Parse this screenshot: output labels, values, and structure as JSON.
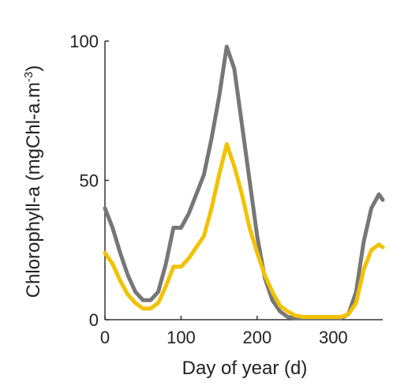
{
  "chart_data": {
    "type": "line",
    "x_label": "Day of year (d)",
    "y_label": {
      "text": "Chlorophyll-a (mgChl-a.m",
      "superscript": "-3",
      "close": ")"
    },
    "x": [
      0,
      10,
      20,
      30,
      40,
      50,
      60,
      70,
      80,
      90,
      100,
      110,
      120,
      130,
      140,
      150,
      160,
      170,
      180,
      190,
      200,
      210,
      220,
      230,
      240,
      250,
      260,
      270,
      280,
      290,
      300,
      310,
      320,
      330,
      340,
      350,
      360,
      365
    ],
    "series": [
      {
        "color": "#777777",
        "values": [
          40,
          33,
          24,
          16,
          10,
          7,
          7,
          10,
          20,
          33,
          33,
          38,
          45,
          52,
          65,
          80,
          98,
          90,
          70,
          50,
          30,
          15,
          7,
          3,
          1,
          0.5,
          0.5,
          0.5,
          0.5,
          0.5,
          0.5,
          0.5,
          2,
          10,
          28,
          40,
          45,
          43
        ]
      },
      {
        "color": "#f2c200",
        "values": [
          24,
          20,
          14,
          9,
          6,
          4,
          4,
          6,
          12,
          19,
          19,
          22,
          26,
          30,
          40,
          52,
          63,
          55,
          45,
          33,
          24,
          16,
          10,
          5,
          3,
          1.5,
          1,
          1,
          1,
          1,
          1,
          1,
          2,
          6,
          18,
          25,
          27,
          26
        ]
      }
    ],
    "xlim": [
      0,
      365
    ],
    "ylim": [
      0,
      100
    ],
    "xticks": [
      0,
      100,
      200,
      300
    ],
    "yticks": [
      0,
      50,
      100
    ]
  }
}
